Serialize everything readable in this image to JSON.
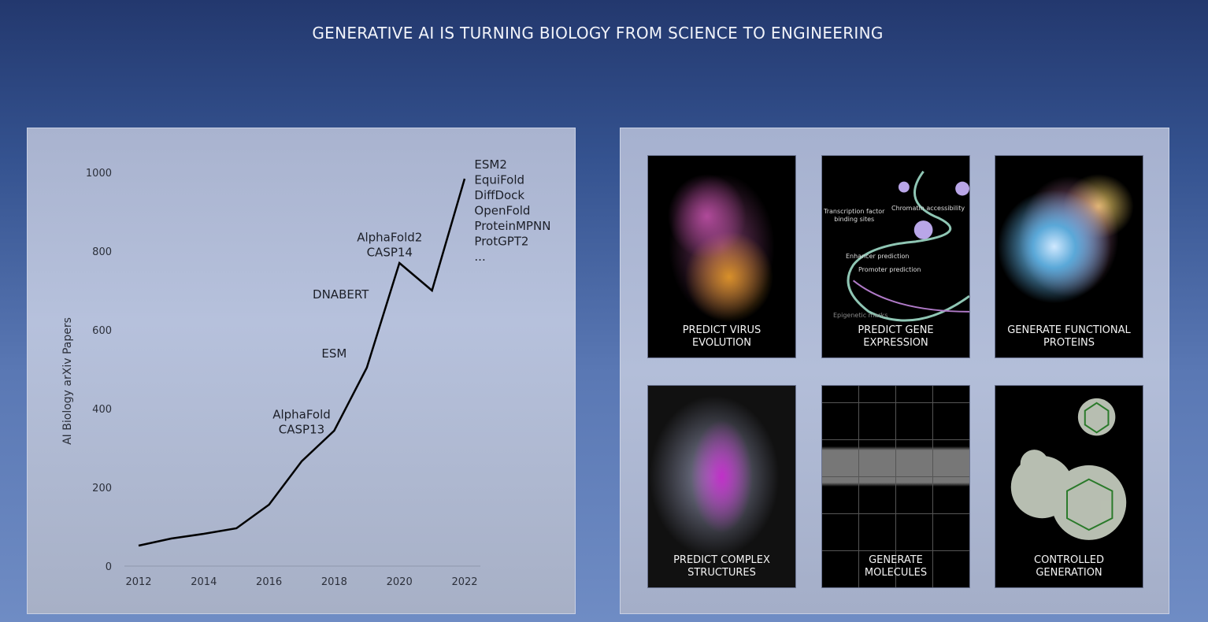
{
  "title": "GENERATIVE AI IS TURNING BIOLOGY FROM SCIENCE TO ENGINEERING",
  "chart_data": {
    "type": "line",
    "title": "",
    "xlabel": "",
    "ylabel": "AI Biology arXiv Papers",
    "x": [
      2012,
      2013,
      2014,
      2015,
      2016,
      2017,
      2018,
      2019,
      2020,
      2021,
      2022
    ],
    "values": [
      52,
      70,
      82,
      96,
      156,
      266,
      344,
      504,
      770,
      700,
      984
    ],
    "xlim": [
      2012,
      2022
    ],
    "ylim": [
      0,
      1000
    ],
    "xticks": [
      "2012",
      "2014",
      "2016",
      "2018",
      "2020",
      "2022"
    ],
    "yticks": [
      "0",
      "200",
      "400",
      "600",
      "800",
      "1000"
    ],
    "grid": false,
    "annotations": [
      {
        "text": [
          "AlphaFold",
          "CASP13"
        ],
        "x": 2017,
        "y": 375
      },
      {
        "text": [
          "ESM"
        ],
        "x": 2018,
        "y": 530
      },
      {
        "text": [
          "DNABERT"
        ],
        "x": 2018.2,
        "y": 680
      },
      {
        "text": [
          "AlphaFold2",
          "CASP14"
        ],
        "x": 2019.7,
        "y": 825
      },
      {
        "text": [
          "ESM2",
          "EquiFold",
          "DiffDock",
          "OpenFold",
          "ProteinMPNN",
          "ProtGPT2",
          "..."
        ],
        "x": 2022.3,
        "y": 1010
      }
    ]
  },
  "cards": [
    {
      "label": "PREDICT VIRUS\nEVOLUTION"
    },
    {
      "label": "PREDICT GENE\nEXPRESSION",
      "captions": [
        "Transcription factor\nbinding sites",
        "Chromatin accessibility",
        "Enhancer prediction",
        "Promoter prediction",
        "Epigenetic marks"
      ]
    },
    {
      "label": "GENERATE FUNCTIONAL\nPROTEINS"
    },
    {
      "label": "PREDICT COMPLEX\nSTRUCTURES"
    },
    {
      "label": "GENERATE\nMOLECULES"
    },
    {
      "label": "CONTROLLED\nGENERATION"
    }
  ]
}
